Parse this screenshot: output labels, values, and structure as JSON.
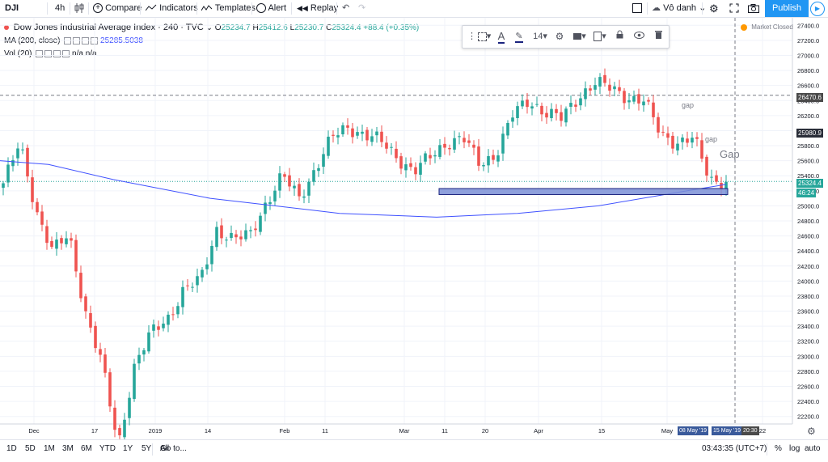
{
  "toolbar": {
    "symbol": "DJI",
    "interval": "4h",
    "compare": "Compare",
    "indicators": "Indicators",
    "templates": "Templates",
    "alert": "Alert",
    "replay": "Replay",
    "layout_name": "Vô danh",
    "publish": "Publish"
  },
  "legend": {
    "title": "Dow Jones Industrial Average Index · 240 · TVC",
    "o_label": "O",
    "o": "25234.7",
    "h_label": "H",
    "h": "25412.6",
    "l_label": "L",
    "l": "25230.7",
    "c_label": "C",
    "c": "25324.4",
    "change": "+88.4 (+0.35%)",
    "ma_label": "MA (200, close)",
    "ma_value": "25285.5038",
    "vol_label": "Vol (20)",
    "vol_value1": "n/a",
    "vol_value2": "n/a"
  },
  "draw_toolbar": {
    "font_size": "14"
  },
  "market_status": "Market Closed",
  "annotations": {
    "gap_small_1": "gap",
    "gap_small_2": "gap",
    "gap_large": "Gap"
  },
  "price_labels": {
    "crosshair": "26470.6",
    "mid": "25980.9",
    "last": "25324.4",
    "countdown": "46:24"
  },
  "xaxis_labels": {
    "start": "08 May '19",
    "end": "15 May '19",
    "time": "20:30"
  },
  "bottom": {
    "ranges": [
      "1D",
      "5D",
      "1M",
      "3M",
      "6M",
      "YTD",
      "1Y",
      "5Y",
      "All"
    ],
    "goto": "Go to...",
    "clock": "03:43:35 (UTC+7)",
    "percent": "%",
    "log": "log",
    "auto": "auto"
  },
  "colors": {
    "up": "#26a69a",
    "down": "#ef5350",
    "ma": "#3f51ff",
    "zone": "#7b8fd6",
    "accent": "#2196f3"
  },
  "chart_data": {
    "type": "candlestick",
    "title": "Dow Jones Industrial Average Index",
    "interval": "240",
    "source": "TVC",
    "x_ticks": [
      "Dec",
      "17",
      "2019",
      "14",
      "Feb",
      "11",
      "Mar",
      "11",
      "20",
      "Apr",
      "15",
      "May",
      "22"
    ],
    "y_ticks": [
      27400,
      27200,
      27000,
      26800,
      26600,
      26400,
      26200,
      26000,
      25800,
      25600,
      25400,
      25200,
      25000,
      24800,
      24600,
      24400,
      24200,
      24000,
      23800,
      23600,
      23400,
      23200,
      23000,
      22800,
      22600,
      22400,
      22200
    ],
    "ylim": [
      22100,
      27500
    ],
    "close_path": [
      [
        "Nov 28",
        25300
      ],
      [
        "Dec 3",
        25820
      ],
      [
        "Dec 6",
        24950
      ],
      [
        "Dec 10",
        24400
      ],
      [
        "Dec 13",
        24600
      ],
      [
        "Dec 17",
        23600
      ],
      [
        "Dec 20",
        22900
      ],
      [
        "Dec 24",
        21800
      ],
      [
        "Dec 27",
        22900
      ],
      [
        "Jan 2",
        23300
      ],
      [
        "Jan 7",
        23500
      ],
      [
        "Jan 11",
        23900
      ],
      [
        "Jan 14",
        24000
      ],
      [
        "Jan 18",
        24700
      ],
      [
        "Jan 23",
        24550
      ],
      [
        "Jan 29",
        24600
      ],
      [
        "Feb 1",
        25050
      ],
      [
        "Feb 5",
        25400
      ],
      [
        "Feb 8",
        25100
      ],
      [
        "Feb 12",
        25500
      ],
      [
        "Feb 19",
        25900
      ],
      [
        "Feb 22",
        26050
      ],
      [
        "Feb 26",
        25950
      ],
      [
        "Mar 1",
        25850
      ],
      [
        "Mar 6",
        25650
      ],
      [
        "Mar 8",
        25450
      ],
      [
        "Mar 11",
        25650
      ],
      [
        "Mar 15",
        25850
      ],
      [
        "Mar 20",
        25900
      ],
      [
        "Mar 22",
        25550
      ],
      [
        "Mar 27",
        25700
      ],
      [
        "Apr 2",
        26200
      ],
      [
        "Apr 5",
        26400
      ],
      [
        "Apr 8",
        26250
      ],
      [
        "Apr 11",
        26150
      ],
      [
        "Apr 16",
        26450
      ],
      [
        "Apr 23",
        26650
      ],
      [
        "Apr 26",
        26550
      ],
      [
        "May 1",
        26450
      ],
      [
        "May 3",
        26400
      ],
      [
        "May 7",
        25950
      ],
      [
        "May 9",
        25850
      ],
      [
        "May 10",
        25900
      ],
      [
        "May 13",
        25350
      ],
      [
        "May 14",
        25324
      ]
    ],
    "ma200_path": [
      [
        "Nov 28",
        25600
      ],
      [
        "Dec 10",
        25550
      ],
      [
        "Dec 24",
        25350
      ],
      [
        "Jan 14",
        25100
      ],
      [
        "Feb 1",
        25000
      ],
      [
        "Feb 19",
        24900
      ],
      [
        "Mar 8",
        24850
      ],
      [
        "Mar 27",
        24900
      ],
      [
        "Apr 16",
        25000
      ],
      [
        "May 3",
        25200
      ],
      [
        "May 14",
        25285
      ]
    ],
    "support_zone": [
      25150,
      25230
    ],
    "markers": [
      {
        "label": "gap",
        "price": 26180
      },
      {
        "label": "gap",
        "price": 25750
      },
      {
        "label": "Gap",
        "price": 25650
      }
    ]
  }
}
